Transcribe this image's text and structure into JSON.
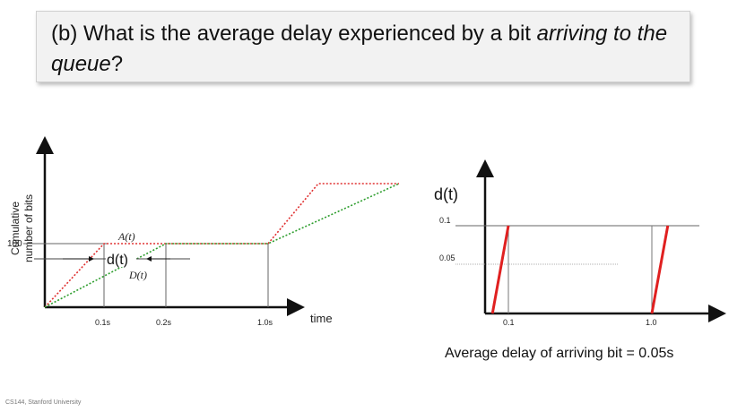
{
  "question": {
    "part": "(b) What is the average delay experienced by a bit",
    "italic": "arriving to the queue",
    "end": "?"
  },
  "left_chart": {
    "ylabel_line1": "Cumulative",
    "ylabel_line2": "number of bits",
    "y_tick": "100",
    "x_ticks": [
      "0.1s",
      "0.2s",
      "1.0s"
    ],
    "xlabel": "time",
    "label_A": "A(t)",
    "label_D": "D(t)",
    "label_d": "d(t)",
    "colors": {
      "arrival": "#e03030",
      "departure": "#2e9e2e"
    }
  },
  "chart_data": {
    "type": "line",
    "title": "d(t)",
    "xlabel": "",
    "ylabel": "d(t)",
    "x_ticks": [
      "0.1",
      "1.0"
    ],
    "y_ticks": [
      "0.1",
      "0.05"
    ],
    "xlim": [
      0,
      1.15
    ],
    "ylim": [
      0,
      0.12
    ],
    "series": [
      {
        "x": [
          0,
          0.1
        ],
        "y": [
          0,
          0.1
        ]
      },
      {
        "x": [
          1.0,
          1.1
        ],
        "y": [
          0,
          0.1
        ]
      }
    ],
    "color": "#e02020"
  },
  "answer": "Average delay of arriving bit = 0.05s",
  "footer": "CS144, Stanford University"
}
